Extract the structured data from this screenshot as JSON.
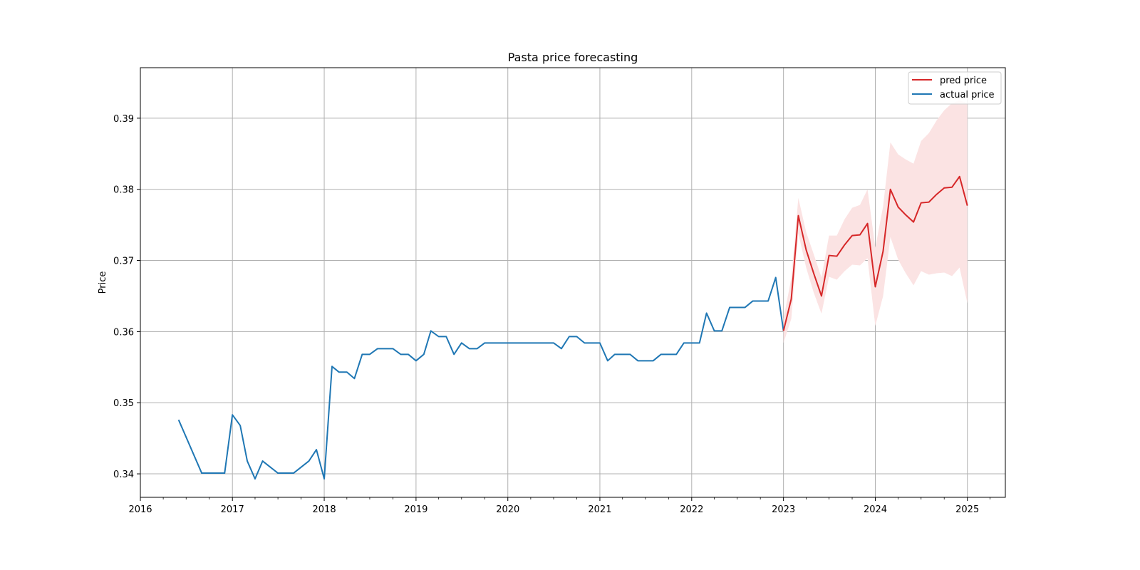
{
  "chart_data": {
    "type": "line",
    "title": "Pasta price forecasting",
    "xlabel": "",
    "ylabel": "Price",
    "xlim": [
      "2016-01-01",
      "2025-06-01"
    ],
    "ylim": [
      0.3367,
      0.3971
    ],
    "x_ticks": [
      "2016",
      "2017",
      "2018",
      "2019",
      "2020",
      "2021",
      "2022",
      "2023",
      "2024",
      "2025"
    ],
    "y_ticks": [
      "0.34",
      "0.35",
      "0.36",
      "0.37",
      "0.38",
      "0.39"
    ],
    "grid": true,
    "legend_position": "top-right",
    "series": [
      {
        "name": "actual price",
        "color": "#1f77b4",
        "points": [
          [
            "2016-06-01",
            0.3476
          ],
          [
            "2016-09-01",
            0.3401
          ],
          [
            "2016-10-01",
            0.3401
          ],
          [
            "2016-12-01",
            0.3401
          ],
          [
            "2017-01-01",
            0.3483
          ],
          [
            "2017-02-01",
            0.3468
          ],
          [
            "2017-03-01",
            0.3418
          ],
          [
            "2017-04-01",
            0.3393
          ],
          [
            "2017-05-01",
            0.3418
          ],
          [
            "2017-07-01",
            0.3401
          ],
          [
            "2017-09-01",
            0.3401
          ],
          [
            "2017-11-01",
            0.3418
          ],
          [
            "2017-12-01",
            0.3434
          ],
          [
            "2018-01-01",
            0.3393
          ],
          [
            "2018-02-01",
            0.3551
          ],
          [
            "2018-03-01",
            0.3543
          ],
          [
            "2018-04-01",
            0.3543
          ],
          [
            "2018-05-01",
            0.3534
          ],
          [
            "2018-06-01",
            0.3568
          ],
          [
            "2018-07-01",
            0.3568
          ],
          [
            "2018-08-01",
            0.3576
          ],
          [
            "2018-10-01",
            0.3576
          ],
          [
            "2018-11-01",
            0.3568
          ],
          [
            "2018-12-01",
            0.3568
          ],
          [
            "2019-01-01",
            0.3559
          ],
          [
            "2019-02-01",
            0.3568
          ],
          [
            "2019-03-01",
            0.3601
          ],
          [
            "2019-04-01",
            0.3593
          ],
          [
            "2019-05-01",
            0.3593
          ],
          [
            "2019-06-01",
            0.3568
          ],
          [
            "2019-07-01",
            0.3584
          ],
          [
            "2019-08-01",
            0.3576
          ],
          [
            "2019-09-01",
            0.3576
          ],
          [
            "2019-10-01",
            0.3584
          ],
          [
            "2020-01-01",
            0.3584
          ],
          [
            "2020-07-01",
            0.3584
          ],
          [
            "2020-08-01",
            0.3576
          ],
          [
            "2020-09-01",
            0.3593
          ],
          [
            "2020-10-01",
            0.3593
          ],
          [
            "2020-11-01",
            0.3584
          ],
          [
            "2021-01-01",
            0.3584
          ],
          [
            "2021-02-01",
            0.3559
          ],
          [
            "2021-03-01",
            0.3568
          ],
          [
            "2021-05-01",
            0.3568
          ],
          [
            "2021-06-01",
            0.3559
          ],
          [
            "2021-08-01",
            0.3559
          ],
          [
            "2021-09-01",
            0.3568
          ],
          [
            "2021-11-01",
            0.3568
          ],
          [
            "2021-12-01",
            0.3584
          ],
          [
            "2022-02-01",
            0.3584
          ],
          [
            "2022-03-01",
            0.3626
          ],
          [
            "2022-04-01",
            0.3601
          ],
          [
            "2022-05-01",
            0.3601
          ],
          [
            "2022-06-01",
            0.3634
          ],
          [
            "2022-08-01",
            0.3634
          ],
          [
            "2022-09-01",
            0.3643
          ],
          [
            "2022-11-01",
            0.3643
          ],
          [
            "2022-12-01",
            0.3676
          ],
          [
            "2023-01-01",
            0.3601
          ]
        ]
      },
      {
        "name": "pred price",
        "color": "#d62728",
        "points": [
          [
            "2023-01-01",
            0.3601
          ],
          [
            "2023-02-01",
            0.3646
          ],
          [
            "2023-03-01",
            0.3763
          ],
          [
            "2023-04-01",
            0.3715
          ],
          [
            "2023-05-01",
            0.3682
          ],
          [
            "2023-06-01",
            0.365
          ],
          [
            "2023-07-01",
            0.3707
          ],
          [
            "2023-08-01",
            0.3706
          ],
          [
            "2023-09-01",
            0.3722
          ],
          [
            "2023-10-01",
            0.3735
          ],
          [
            "2023-11-01",
            0.3736
          ],
          [
            "2023-12-01",
            0.3752
          ],
          [
            "2024-01-01",
            0.3663
          ],
          [
            "2024-02-01",
            0.3713
          ],
          [
            "2024-03-01",
            0.38
          ],
          [
            "2024-04-01",
            0.3775
          ],
          [
            "2024-05-01",
            0.3764
          ],
          [
            "2024-06-01",
            0.3754
          ],
          [
            "2024-07-01",
            0.3781
          ],
          [
            "2024-08-01",
            0.3782
          ],
          [
            "2024-09-01",
            0.3793
          ],
          [
            "2024-10-01",
            0.3802
          ],
          [
            "2024-11-01",
            0.3803
          ],
          [
            "2024-12-01",
            0.3818
          ],
          [
            "2025-01-01",
            0.3777
          ]
        ],
        "band_color": "#fbe3e3",
        "band": [
          [
            "2023-01-01",
            0.3584,
            0.3618
          ],
          [
            "2023-02-01",
            0.3618,
            0.3675
          ],
          [
            "2023-03-01",
            0.3738,
            0.3788
          ],
          [
            "2023-04-01",
            0.369,
            0.374
          ],
          [
            "2023-05-01",
            0.3655,
            0.3709
          ],
          [
            "2023-06-01",
            0.3625,
            0.3676
          ],
          [
            "2023-07-01",
            0.3677,
            0.3735
          ],
          [
            "2023-08-01",
            0.3673,
            0.3735
          ],
          [
            "2023-09-01",
            0.3685,
            0.3758
          ],
          [
            "2023-10-01",
            0.3694,
            0.3774
          ],
          [
            "2023-11-01",
            0.3693,
            0.3778
          ],
          [
            "2023-12-01",
            0.3703,
            0.38
          ],
          [
            "2024-01-01",
            0.3608,
            0.3718
          ],
          [
            "2024-02-01",
            0.365,
            0.3776
          ],
          [
            "2024-03-01",
            0.3733,
            0.3866
          ],
          [
            "2024-04-01",
            0.3701,
            0.3849
          ],
          [
            "2024-05-01",
            0.3682,
            0.3842
          ],
          [
            "2024-06-01",
            0.3665,
            0.3836
          ],
          [
            "2024-07-01",
            0.3685,
            0.3868
          ],
          [
            "2024-08-01",
            0.368,
            0.3879
          ],
          [
            "2024-09-01",
            0.3682,
            0.3897
          ],
          [
            "2024-10-01",
            0.3683,
            0.3911
          ],
          [
            "2024-11-01",
            0.3678,
            0.3921
          ],
          [
            "2024-12-01",
            0.369,
            0.3925
          ],
          [
            "2025-01-01",
            0.364,
            0.3921
          ]
        ]
      }
    ],
    "legend": [
      "pred price",
      "actual price"
    ]
  }
}
